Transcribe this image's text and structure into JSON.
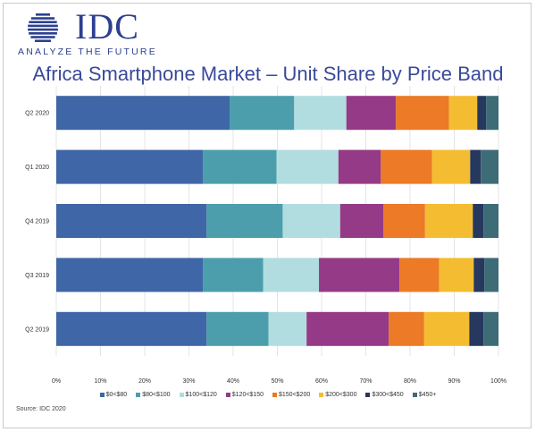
{
  "brand": {
    "name": "IDC",
    "tagline": "ANALYZE THE FUTURE",
    "color": "#2c3f91"
  },
  "source": "Source: IDC 2020",
  "chart_data": {
    "type": "bar",
    "orientation": "horizontal",
    "stacked": true,
    "title": "Africa Smartphone Market – Unit Share by Price Band",
    "categories": [
      "Q2 2020",
      "Q1 2020",
      "Q4 2019",
      "Q3 2019",
      "Q2 2019"
    ],
    "xlim": [
      0,
      100
    ],
    "x_ticks": [
      "0%",
      "10%",
      "20%",
      "30%",
      "40%",
      "50%",
      "60%",
      "70%",
      "80%",
      "90%",
      "100%"
    ],
    "grid": "vertical",
    "legend_position": "bottom",
    "series": [
      {
        "name": "$0<$80",
        "color": "#3f66a6",
        "values": [
          39.2,
          33.2,
          34.0,
          33.2,
          34.0
        ]
      },
      {
        "name": "$80<$100",
        "color": "#4c9eac",
        "values": [
          14.6,
          16.6,
          17.2,
          13.6,
          14.0
        ]
      },
      {
        "name": "$100<$120",
        "color": "#b2dde0",
        "values": [
          11.8,
          14.0,
          13.0,
          12.6,
          8.6
        ]
      },
      {
        "name": "$120<$150",
        "color": "#953a86",
        "values": [
          11.2,
          9.6,
          9.8,
          18.2,
          18.6
        ]
      },
      {
        "name": "$150<$200",
        "color": "#ec7a26",
        "values": [
          12.0,
          11.6,
          9.4,
          9.0,
          8.0
        ]
      },
      {
        "name": "$200<$300",
        "color": "#f4bd31",
        "values": [
          6.4,
          8.6,
          10.8,
          7.8,
          10.2
        ]
      },
      {
        "name": "$300<$450",
        "color": "#27385f",
        "values": [
          2.0,
          2.4,
          2.4,
          2.4,
          3.2
        ]
      },
      {
        "name": "$450+",
        "color": "#3d6c76",
        "values": [
          2.8,
          4.0,
          3.4,
          3.2,
          3.4
        ]
      }
    ]
  }
}
